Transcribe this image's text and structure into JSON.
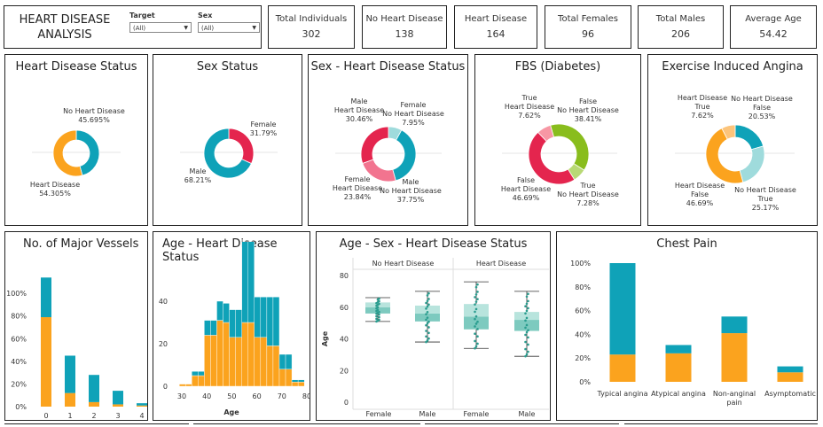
{
  "header": {
    "title_line1": "HEART DISEASE",
    "title_line2": "ANALYSIS"
  },
  "filters": {
    "target": {
      "label": "Target",
      "value": "(All)"
    },
    "sex": {
      "label": "Sex",
      "value": "(All)"
    }
  },
  "kpis": [
    {
      "label": "Total Individuals",
      "value": "302"
    },
    {
      "label": "No Heart Disease",
      "value": "138"
    },
    {
      "label": "Heart Disease",
      "value": "164"
    },
    {
      "label": "Total Females",
      "value": "96"
    },
    {
      "label": "Total Males",
      "value": "206"
    },
    {
      "label": "Average Age",
      "value": "54.42"
    }
  ],
  "colors": {
    "teal": "#0fa2b8",
    "orange": "#fba31e",
    "red": "#e4254e",
    "pink": "#f2748f",
    "light_teal": "#9fdbdc",
    "green": "#89bd1d",
    "light_pink": "#f797a4",
    "light_orange": "#fcc47b"
  },
  "panels": {
    "p1": {
      "title": "Heart Disease Status",
      "l1a": "No Heart Disease",
      "l1b": "45.695%",
      "l2a": "Heart Disease",
      "l2b": "54.305%"
    },
    "p2": {
      "title": "Sex Status",
      "l1a": "Female",
      "l1b": "31.79%",
      "l2a": "Male",
      "l2b": "68.21%"
    },
    "p3": {
      "title": "Sex - Heart Disease Status",
      "a1": "Male",
      "a2": "Heart Disease",
      "a3": "30.46%",
      "b1": "Female",
      "b2": "No Heart Disease",
      "b3": "7.95%",
      "c1": "Female",
      "c2": "Heart Disease",
      "c3": "23.84%",
      "d1": "Male",
      "d2": "No Heart Disease",
      "d3": "37.75%"
    },
    "p4": {
      "title": "FBS (Diabetes)",
      "a1": "True",
      "a2": "Heart Disease",
      "a3": "7.62%",
      "b1": "False",
      "b2": "No Heart Disease",
      "b3": "38.41%",
      "c1": "False",
      "c2": "Heart Disease",
      "c3": "46.69%",
      "d1": "True",
      "d2": "No Heart Disease",
      "d3": "7.28%"
    },
    "p5": {
      "title": "Exercise Induced Angina",
      "a1": "Heart Disease",
      "a2": "True",
      "a3": "7.62%",
      "b1": "No Heart Disease",
      "b2": "False",
      "b3": "20.53%",
      "c1": "Heart Disease",
      "c2": "False",
      "c3": "46.69%",
      "d1": "No Heart Disease",
      "d2": "True",
      "d3": "25.17%"
    },
    "p6": {
      "title": "No. of Major Vessels"
    },
    "p7": {
      "title": "Age - Heart Disease Status",
      "xlabel": "Age"
    },
    "p8": {
      "title": "Age - Sex - Heart Disease Status",
      "group1": "No Heart Disease",
      "group2": "Heart Disease",
      "ylabel": "Age",
      "x1": "Female",
      "x2": "Male",
      "x3": "Female",
      "x4": "Male"
    },
    "p9": {
      "title": "Chest Pain"
    }
  },
  "chart_data": [
    {
      "type": "pie",
      "title": "Heart Disease Status",
      "slices": [
        {
          "label": "No Heart Disease",
          "value": 45.695,
          "color": "#0fa2b8"
        },
        {
          "label": "Heart Disease",
          "value": 54.305,
          "color": "#fba31e"
        }
      ]
    },
    {
      "type": "pie",
      "title": "Sex Status",
      "slices": [
        {
          "label": "Female",
          "value": 31.79,
          "color": "#e4254e"
        },
        {
          "label": "Male",
          "value": 68.21,
          "color": "#0fa2b8"
        }
      ]
    },
    {
      "type": "pie",
      "title": "Sex - Heart Disease Status",
      "slices": [
        {
          "label": "Female No Heart Disease",
          "value": 7.95,
          "color": "#9fdbdc"
        },
        {
          "label": "Male No Heart Disease",
          "value": 37.75,
          "color": "#0fa2b8"
        },
        {
          "label": "Female Heart Disease",
          "value": 23.84,
          "color": "#f2748f"
        },
        {
          "label": "Male Heart Disease",
          "value": 30.46,
          "color": "#e4254e"
        }
      ]
    },
    {
      "type": "pie",
      "title": "FBS (Diabetes)",
      "slices": [
        {
          "label": "False No Heart Disease",
          "value": 38.41,
          "color": "#89bd1d"
        },
        {
          "label": "True No Heart Disease",
          "value": 7.28,
          "color": "#b8d975"
        },
        {
          "label": "False Heart Disease",
          "value": 46.69,
          "color": "#e4254e"
        },
        {
          "label": "True Heart Disease",
          "value": 7.62,
          "color": "#f797a4"
        }
      ]
    },
    {
      "type": "pie",
      "title": "Exercise Induced Angina",
      "slices": [
        {
          "label": "No Heart Disease False",
          "value": 20.53,
          "color": "#0fa2b8"
        },
        {
          "label": "No Heart Disease True",
          "value": 25.17,
          "color": "#9fdbdc"
        },
        {
          "label": "Heart Disease False",
          "value": 46.69,
          "color": "#fba31e"
        },
        {
          "label": "Heart Disease True",
          "value": 7.62,
          "color": "#fcc47b"
        }
      ]
    },
    {
      "type": "bar",
      "title": "No. of Major Vessels",
      "categories": [
        "0",
        "1",
        "2",
        "3",
        "4"
      ],
      "yticks": [
        "0%",
        "20%",
        "40%",
        "60%",
        "80%",
        "100%"
      ],
      "ylim": [
        0,
        115
      ],
      "series": [
        {
          "values": [
            79,
            12,
            4,
            2,
            1
          ],
          "color": "#fba31e"
        },
        {
          "values": [
            35,
            33,
            24,
            12,
            2
          ],
          "color": "#0fa2b8"
        }
      ]
    },
    {
      "type": "bar",
      "title": "Age - Heart Disease Status",
      "xlabel": "Age",
      "xticks": [
        "30",
        "40",
        "50",
        "60",
        "70",
        "80"
      ],
      "yticks": [
        "0",
        "20",
        "40"
      ],
      "ylim": [
        0,
        50
      ],
      "bins": [
        29,
        31.5,
        34,
        36.5,
        39,
        41.5,
        44,
        46.5,
        49,
        51.5,
        54,
        56.5,
        59,
        61.5,
        64,
        66.5,
        69,
        71.5,
        74,
        76.5
      ],
      "series": [
        {
          "values": [
            1,
            1,
            5,
            5,
            24,
            24,
            31,
            30,
            23,
            23,
            30,
            30,
            23,
            23,
            19,
            19,
            8,
            8,
            2,
            2
          ],
          "color": "#fba31e"
        },
        {
          "values": [
            0,
            0,
            2,
            2,
            7,
            7,
            9,
            9,
            13,
            13,
            38,
            38,
            19,
            19,
            23,
            23,
            7,
            7,
            1,
            1
          ],
          "color": "#0fa2b8"
        }
      ]
    },
    {
      "type": "scatter",
      "title": "Age - Sex - Heart Disease Status",
      "yticks": [
        "0",
        "20",
        "40",
        "60",
        "80"
      ],
      "ylim": [
        0,
        80
      ],
      "boxes": [
        {
          "q1": 56,
          "median": 60,
          "q3": 63,
          "whisk_lo": 51,
          "whisk_hi": 66
        },
        {
          "q1": 51,
          "median": 56,
          "q3": 61,
          "whisk_lo": 38,
          "whisk_hi": 70
        },
        {
          "q1": 46,
          "median": 54,
          "q3": 62,
          "whisk_lo": 34,
          "whisk_hi": 76
        },
        {
          "q1": 45,
          "median": 52,
          "q3": 57,
          "whisk_lo": 29,
          "whisk_hi": 70
        }
      ]
    },
    {
      "type": "bar",
      "title": "Chest Pain",
      "categories": [
        "Typical angina",
        "Atypical angina",
        "Non-anginal pain",
        "Asymptomatic"
      ],
      "yticks": [
        "0%",
        "20%",
        "40%",
        "60%",
        "80%",
        "100%"
      ],
      "ylim": [
        0,
        100
      ],
      "series": [
        {
          "values": [
            23,
            24,
            41,
            8
          ],
          "color": "#fba31e"
        },
        {
          "values": [
            77,
            7,
            14,
            5
          ],
          "color": "#0fa2b8"
        }
      ]
    }
  ]
}
